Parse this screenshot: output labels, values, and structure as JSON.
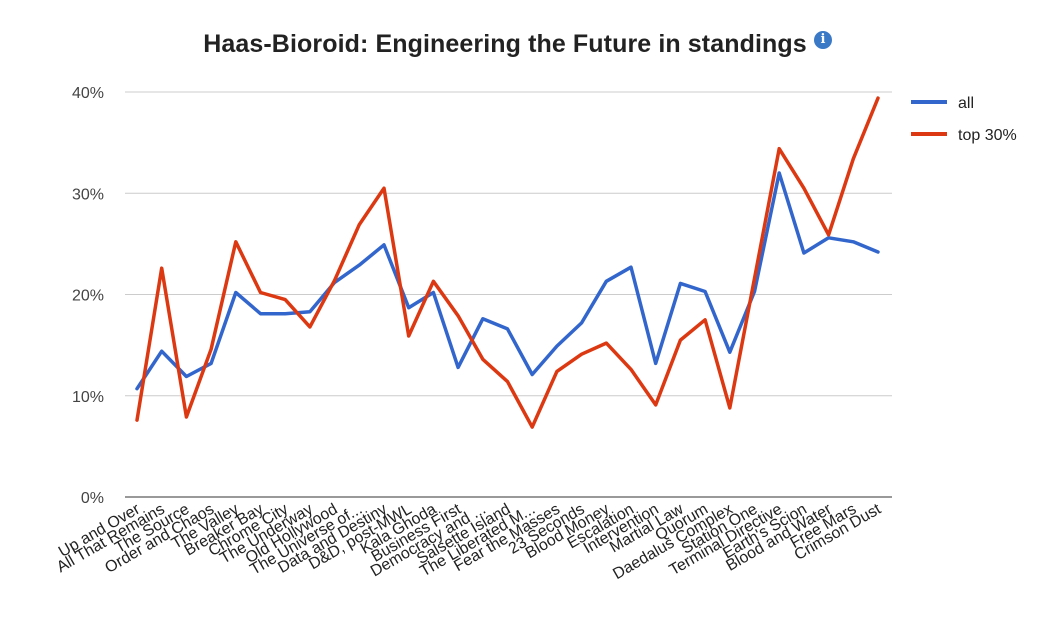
{
  "chart_data": {
    "type": "line",
    "title": "Haas-Bioroid: Engineering the Future in standings",
    "info_icon": "info-icon",
    "xlabel": "",
    "ylabel": "",
    "ylim": [
      0,
      40
    ],
    "y_ticks": [
      "0%",
      "10%",
      "20%",
      "30%",
      "40%"
    ],
    "y_tick_values": [
      0,
      10,
      20,
      30,
      40
    ],
    "grid": true,
    "legend_position": "right",
    "categories": [
      "Up and Over",
      "All That Remains",
      "The Source",
      "Order and Chaos",
      "The Valley",
      "Breaker Bay",
      "Chrome City",
      "The Underway",
      "Old Hollywood",
      "The Universe of...",
      "Data and Destiny",
      "D&D, post-MWL",
      "Kala Ghoda",
      "Business First",
      "Democracy and ...",
      "Salsette Island",
      "The Liberated M...",
      "Fear the Masses",
      "23 Seconds",
      "Blood Money",
      "Escalation",
      "Intervention",
      "Martial Law",
      "Quorum",
      "Daedalus Complex",
      "Station One",
      "Terminal Directive",
      "Earth's Scion",
      "Blood and Water",
      "Free Mars",
      "Crimson Dust"
    ],
    "series": [
      {
        "name": "all",
        "color": "#3366cc",
        "values": [
          10.7,
          14.4,
          11.9,
          13.2,
          20.2,
          18.1,
          18.1,
          18.3,
          21.2,
          22.9,
          24.9,
          18.7,
          20.2,
          12.8,
          17.6,
          16.6,
          12.1,
          14.9,
          17.2,
          21.3,
          22.7,
          13.2,
          21.1,
          20.3,
          14.3,
          20.3,
          32.0,
          24.1,
          25.6,
          25.2,
          24.2
        ]
      },
      {
        "name": "top 30%",
        "color": "#dc3912",
        "values": [
          7.6,
          22.6,
          7.9,
          14.6,
          25.2,
          20.2,
          19.5,
          16.8,
          21.4,
          26.9,
          30.5,
          15.9,
          21.3,
          17.9,
          13.6,
          11.4,
          6.9,
          12.4,
          14.1,
          15.2,
          12.6,
          9.1,
          15.5,
          17.5,
          8.8,
          21.6,
          34.4,
          30.5,
          25.9,
          33.4,
          39.4
        ]
      }
    ]
  }
}
